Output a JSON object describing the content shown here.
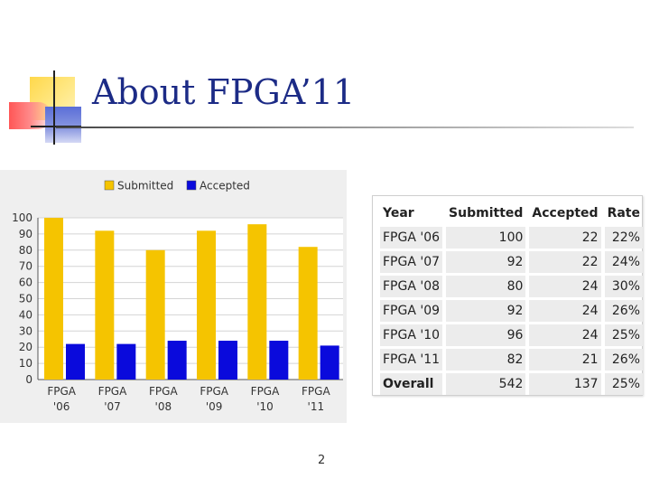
{
  "slide": {
    "title": "About FPGA’11",
    "page_number": "2"
  },
  "colors": {
    "submitted": "#f5c400",
    "accepted": "#0a0adc",
    "title_text": "#1c2b86"
  },
  "chart_data": {
    "type": "bar",
    "categories": [
      [
        "FPGA",
        "'06"
      ],
      [
        "FPGA",
        "'07"
      ],
      [
        "FPGA",
        "'08"
      ],
      [
        "FPGA",
        "'09"
      ],
      [
        "FPGA",
        "'10"
      ],
      [
        "FPGA",
        "'11"
      ]
    ],
    "series": [
      {
        "name": "Submitted",
        "values": [
          100,
          92,
          80,
          92,
          96,
          82
        ],
        "color": "#f5c400"
      },
      {
        "name": "Accepted",
        "values": [
          22,
          22,
          24,
          24,
          24,
          21
        ],
        "color": "#0a0adc"
      }
    ],
    "ylim": [
      0,
      100
    ],
    "yticks": [
      0,
      10,
      20,
      30,
      40,
      50,
      60,
      70,
      80,
      90,
      100
    ],
    "legend_position": "top-center",
    "grid": true
  },
  "table": {
    "headers": [
      "Year",
      "Submitted",
      "Accepted",
      "Rate"
    ],
    "rows": [
      [
        "FPGA '06",
        "100",
        "22",
        "22%"
      ],
      [
        "FPGA '07",
        "92",
        "22",
        "24%"
      ],
      [
        "FPGA '08",
        "80",
        "24",
        "30%"
      ],
      [
        "FPGA '09",
        "92",
        "24",
        "26%"
      ],
      [
        "FPGA '10",
        "96",
        "24",
        "25%"
      ],
      [
        "FPGA '11",
        "82",
        "21",
        "26%"
      ]
    ],
    "overall": [
      "Overall",
      "542",
      "137",
      "25%"
    ]
  }
}
